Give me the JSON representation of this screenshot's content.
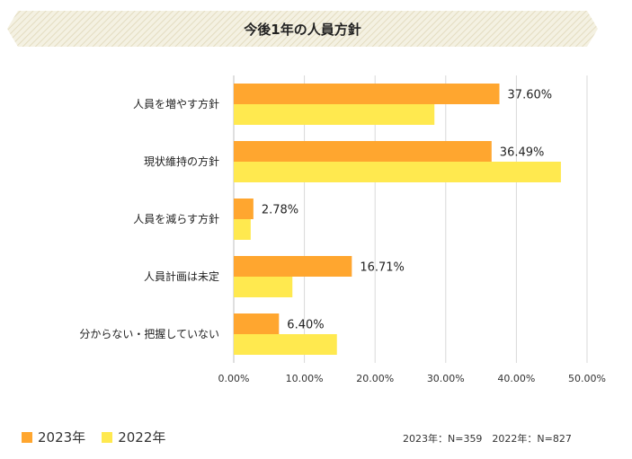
{
  "title": "今後1年の人員方針",
  "colors": {
    "series_2023": "#ffa62f",
    "series_2022": "#ffe94f",
    "banner_bg": "#f4f1e2",
    "banner_stripe": "#e3dcc0",
    "grid": "#d9d9d9"
  },
  "legend": {
    "series_2023_label": "2023年",
    "series_2022_label": "2022年",
    "note": "2023年：N=359　2022年：N=827"
  },
  "chart_data": {
    "type": "bar",
    "orientation": "horizontal",
    "title": "今後1年の人員方針",
    "categories": [
      "人員を増やす方針",
      "現状維持の方針",
      "人員を減らす方針",
      "人員計画は未定",
      "分からない・把握していない"
    ],
    "series": [
      {
        "name": "2023年",
        "values": [
          37.6,
          36.49,
          2.78,
          16.71,
          6.4
        ],
        "value_labels": [
          "37.60%",
          "36.49%",
          "2.78%",
          "16.71%",
          "6.40%"
        ]
      },
      {
        "name": "2022年",
        "values": [
          28.4,
          46.3,
          2.4,
          8.3,
          14.6
        ]
      }
    ],
    "xlim": [
      0,
      50
    ],
    "xticks": [
      "0.00%",
      "10.00%",
      "20.00%",
      "30.00%",
      "40.00%",
      "50.00%"
    ],
    "grid": true,
    "legend_position": "bottom-left"
  }
}
